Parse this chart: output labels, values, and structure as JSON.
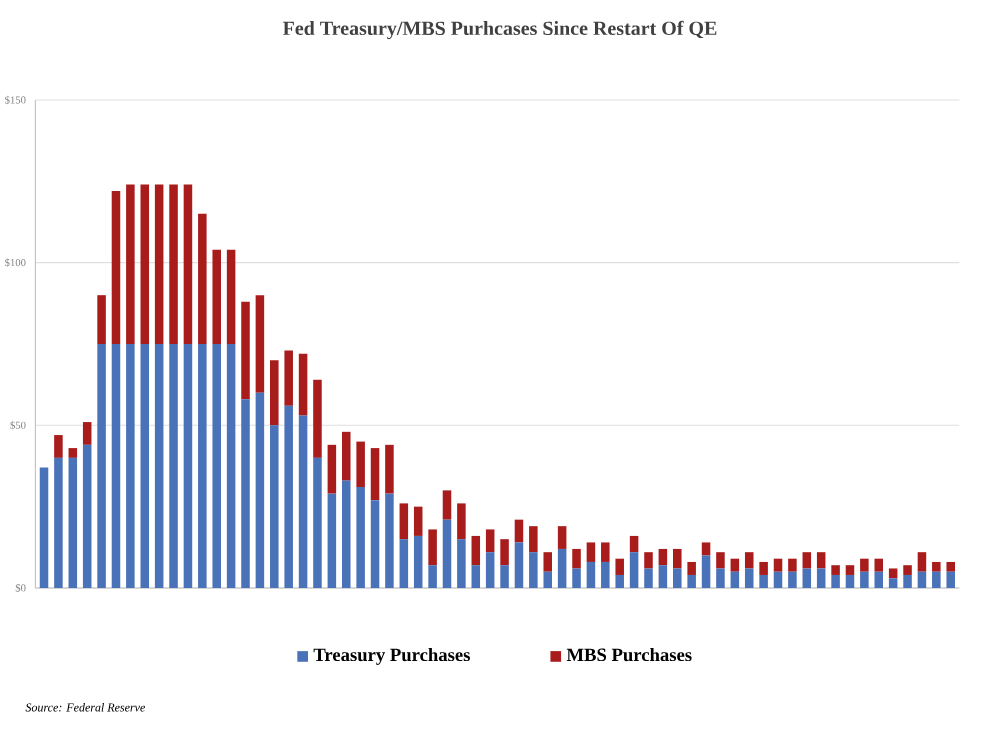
{
  "chart_data": {
    "type": "bar",
    "title": "Fed Treasury/MBS Purhcases Since Restart Of QE",
    "categories": [
      null,
      null,
      null,
      null,
      null,
      null,
      null,
      null,
      null,
      null,
      null,
      null,
      null,
      null,
      null,
      null,
      null,
      null,
      null,
      null,
      null,
      null,
      null,
      null,
      null,
      null,
      null,
      null,
      null,
      null,
      null,
      null,
      null,
      null,
      null,
      null,
      null,
      null,
      null,
      null,
      null,
      null,
      null,
      null,
      null,
      null,
      null,
      null,
      null,
      null,
      null,
      null,
      null,
      null,
      null,
      null,
      null,
      null,
      null,
      null,
      null,
      null,
      null,
      null
    ],
    "stacked": true,
    "series": [
      {
        "name": "Treasury Purchases",
        "color": "#4a72b8",
        "values": [
          37,
          40,
          40,
          44,
          75,
          75,
          75,
          75,
          75,
          75,
          75,
          75,
          75,
          75,
          58,
          60,
          50,
          56,
          53,
          40,
          29,
          33,
          31,
          27,
          29,
          15,
          16,
          7,
          21,
          15,
          7,
          11,
          7,
          14,
          11,
          5,
          12,
          6,
          8,
          8,
          4,
          11,
          6,
          7,
          6,
          4,
          10,
          6,
          5,
          6,
          4,
          5,
          5,
          6,
          6,
          4,
          4,
          5,
          5,
          3,
          4,
          5,
          5,
          5
        ]
      },
      {
        "name": "MBS Purchases",
        "color": "#a81c1c",
        "values": [
          0,
          7,
          3,
          7,
          15,
          47,
          49,
          49,
          49,
          49,
          49,
          40,
          29,
          29,
          30,
          30,
          20,
          17,
          19,
          24,
          15,
          15,
          14,
          16,
          15,
          11,
          9,
          11,
          9,
          11,
          9,
          7,
          8,
          7,
          8,
          6,
          7,
          6,
          6,
          6,
          5,
          5,
          5,
          5,
          6,
          4,
          4,
          5,
          4,
          5,
          4,
          4,
          4,
          5,
          5,
          3,
          3,
          4,
          4,
          3,
          3,
          6,
          3,
          3
        ]
      }
    ],
    "ylim": [
      0,
      150
    ],
    "yticks": [
      {
        "value": 0,
        "label": "$0"
      },
      {
        "value": 50,
        "label": "$50"
      },
      {
        "value": 100,
        "label": "$100"
      },
      {
        "value": 150,
        "label": "$150"
      }
    ],
    "grid": "y",
    "legend": "bottom",
    "annotations": [
      "Source: Federal Reserve"
    ]
  }
}
